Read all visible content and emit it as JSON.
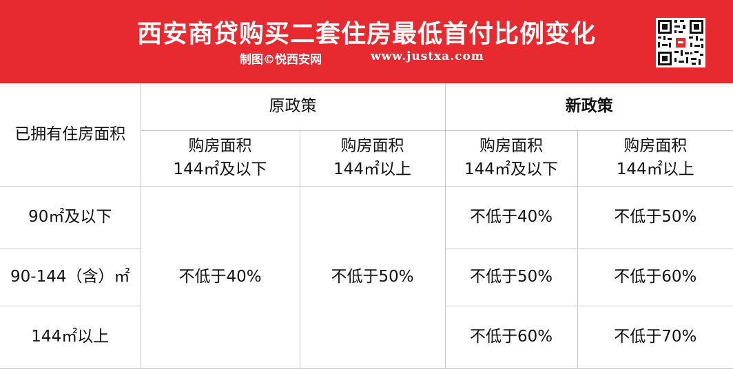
{
  "header": {
    "title": "西安商贷购买二套住房最低首付比例变化",
    "credit": "制图©悦西安网",
    "website": "www.justxa.com",
    "background_color": "#e62a30"
  },
  "table": {
    "row_header_label": "已拥有住房面积",
    "policy_old": "原政策",
    "policy_new": "新政策",
    "col_old_small_l1": "购房面积",
    "col_old_small_l2": "144㎡及以下",
    "col_old_large_l1": "购房面积",
    "col_old_large_l2": "144㎡以上",
    "col_new_small_l1": "购房面积",
    "col_new_small_l2": "144㎡及以下",
    "col_new_large_l1": "购房面积",
    "col_new_large_l2": "144㎡以上",
    "rows": [
      {
        "label": "90㎡及以下",
        "new_small": "不低于40%",
        "new_large": "不低于50%"
      },
      {
        "label": "90-144（含）㎡",
        "new_small": "不低于50%",
        "new_large": "不低于60%"
      },
      {
        "label": "144㎡以上",
        "new_small": "不低于60%",
        "new_large": "不低于70%"
      }
    ],
    "old_small_all": "不低于40%",
    "old_large_all": "不低于50%"
  }
}
